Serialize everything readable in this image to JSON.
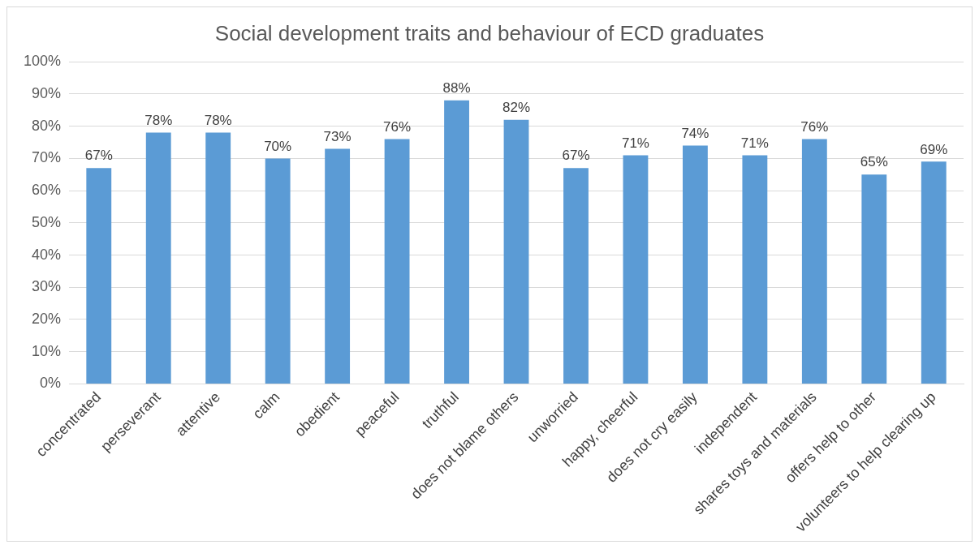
{
  "chart_data": {
    "type": "bar",
    "title": "Social development traits and behaviour of ECD graduates",
    "categories": [
      "concentrated",
      "perseverant",
      "attentive",
      "calm",
      "obedient",
      "peaceful",
      "truthful",
      "does not blame others",
      "unworried",
      "happy, cheerful",
      "does not cry easily",
      "independent",
      "shares toys and materials",
      "offers help to other",
      "volunteers to help clearing up"
    ],
    "values": [
      67,
      78,
      78,
      70,
      73,
      76,
      88,
      82,
      67,
      71,
      74,
      71,
      76,
      65,
      69
    ],
    "value_labels": [
      "67%",
      "78%",
      "78%",
      "70%",
      "73%",
      "76%",
      "88%",
      "82%",
      "67%",
      "71%",
      "74%",
      "71%",
      "76%",
      "65%",
      "69%"
    ],
    "color": "#5b9bd5",
    "ylim": [
      0,
      100
    ],
    "yticks": [
      {
        "value": 0,
        "label": "0%"
      },
      {
        "value": 10,
        "label": "10%"
      },
      {
        "value": 20,
        "label": "20%"
      },
      {
        "value": 30,
        "label": "30%"
      },
      {
        "value": 40,
        "label": "40%"
      },
      {
        "value": 50,
        "label": "50%"
      },
      {
        "value": 60,
        "label": "60%"
      },
      {
        "value": 70,
        "label": "70%"
      },
      {
        "value": 80,
        "label": "80%"
      },
      {
        "value": 90,
        "label": "90%"
      },
      {
        "value": 100,
        "label": "100%"
      }
    ],
    "grid": "y",
    "legend": false
  }
}
